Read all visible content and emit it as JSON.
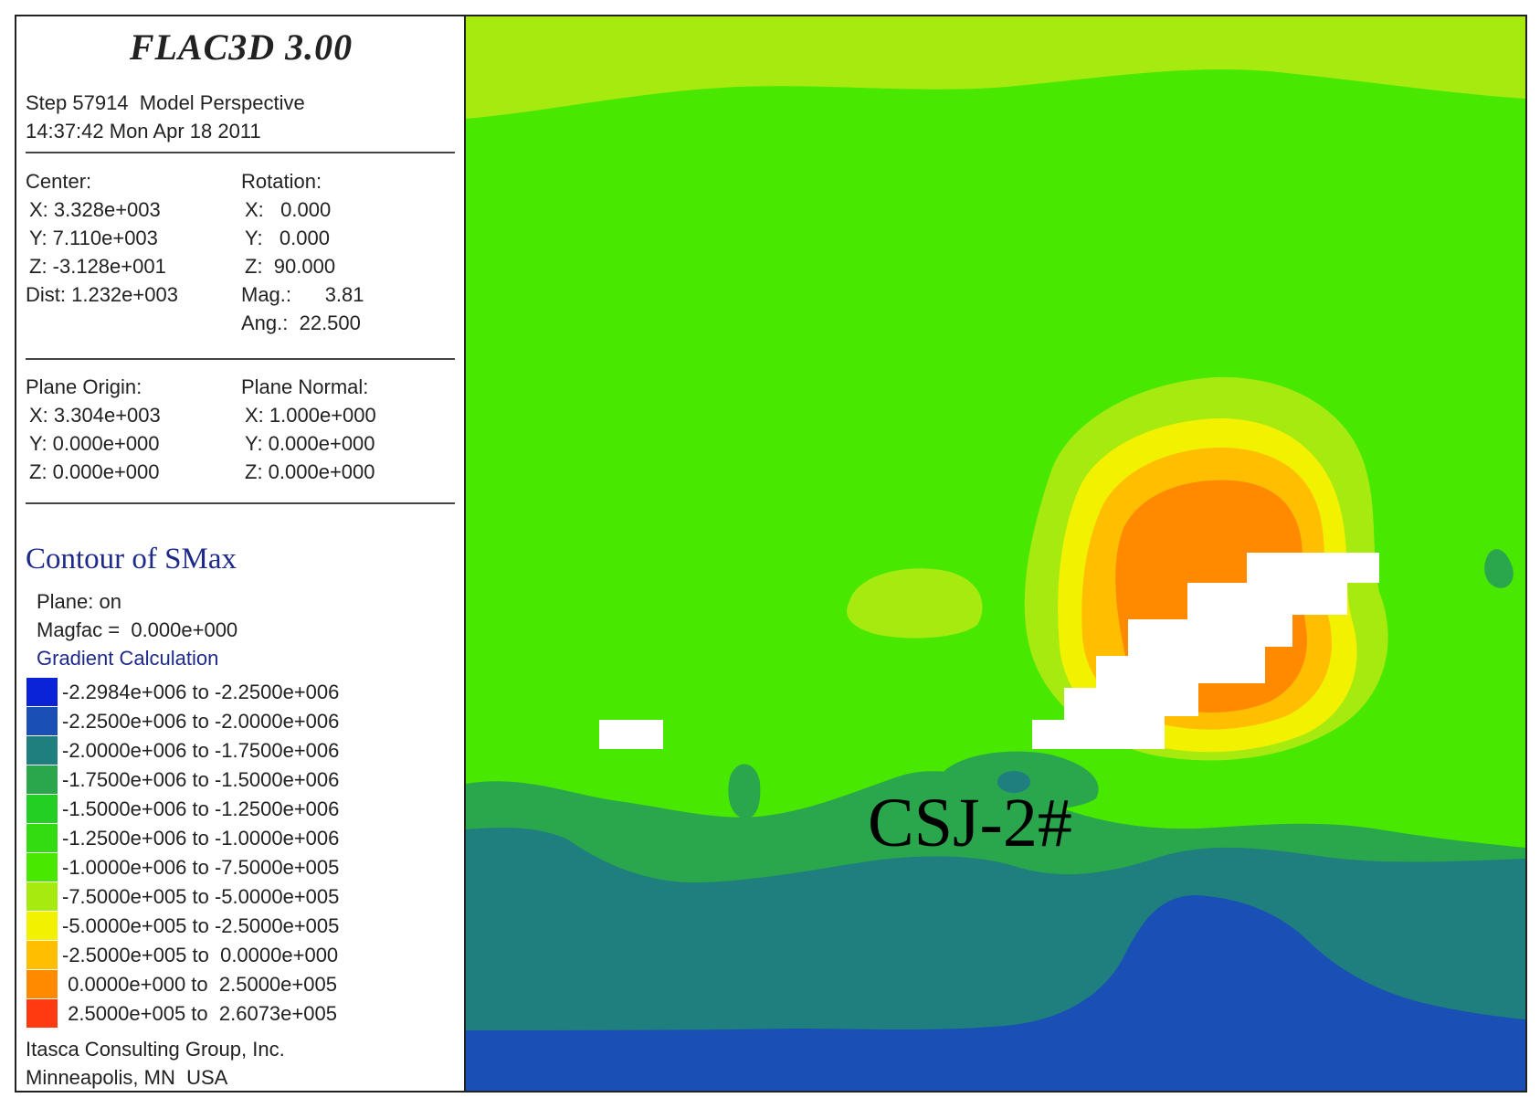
{
  "header": {
    "title": "FLAC3D 3.00",
    "step_line": "Step 57914  Model Perspective",
    "timestamp": "14:37:42 Mon Apr 18 2011"
  },
  "view": {
    "center_label": "Center:",
    "center_x": "X: 3.328e+003",
    "center_y": "Y: 7.110e+003",
    "center_z": "Z: -3.128e+001",
    "dist": "Dist: 1.232e+003",
    "rotation_label": "Rotation:",
    "rotation_x": "X:   0.000",
    "rotation_y": "Y:   0.000",
    "rotation_z": "Z:  90.000",
    "mag": "Mag.:      3.81",
    "ang": "Ang.:  22.500"
  },
  "plane": {
    "origin_label": "Plane Origin:",
    "origin_x": "X: 3.304e+003",
    "origin_y": "Y: 0.000e+000",
    "origin_z": "Z: 0.000e+000",
    "normal_label": "Plane Normal:",
    "normal_x": "X: 1.000e+000",
    "normal_y": "Y: 0.000e+000",
    "normal_z": "Z: 0.000e+000"
  },
  "contour": {
    "title": "Contour of SMax",
    "plane_status": "Plane: on",
    "magfac": "Magfac =  0.000e+000",
    "gradient": "Gradient Calculation",
    "ranges": [
      {
        "label": "-2.2984e+006 to -2.2500e+006",
        "color": "#0a22d8"
      },
      {
        "label": "-2.2500e+006 to -2.0000e+006",
        "color": "#1a4fb5"
      },
      {
        "label": "-2.0000e+006 to -1.7500e+006",
        "color": "#1e7f7e"
      },
      {
        "label": "-1.7500e+006 to -1.5000e+006",
        "color": "#2aa64c"
      },
      {
        "label": "-1.5000e+006 to -1.2500e+006",
        "color": "#22cf22"
      },
      {
        "label": "-1.2500e+006 to -1.0000e+006",
        "color": "#33dc10"
      },
      {
        "label": "-1.0000e+006 to -7.5000e+005",
        "color": "#48e800"
      },
      {
        "label": "-7.5000e+005 to -5.0000e+005",
        "color": "#a6ea10"
      },
      {
        "label": "-5.0000e+005 to -2.5000e+005",
        "color": "#f2f200"
      },
      {
        "label": "-2.5000e+005 to  0.0000e+000",
        "color": "#ffbf00"
      },
      {
        "label": " 0.0000e+000 to  2.5000e+005",
        "color": "#ff8a00"
      },
      {
        "label": " 2.5000e+005 to  2.6073e+005",
        "color": "#ff3a10"
      }
    ]
  },
  "footer": {
    "company": "Itasca Consulting Group, Inc.",
    "location": "Minneapolis, MN  USA"
  },
  "plot": {
    "annotation": "CSJ-2#"
  }
}
